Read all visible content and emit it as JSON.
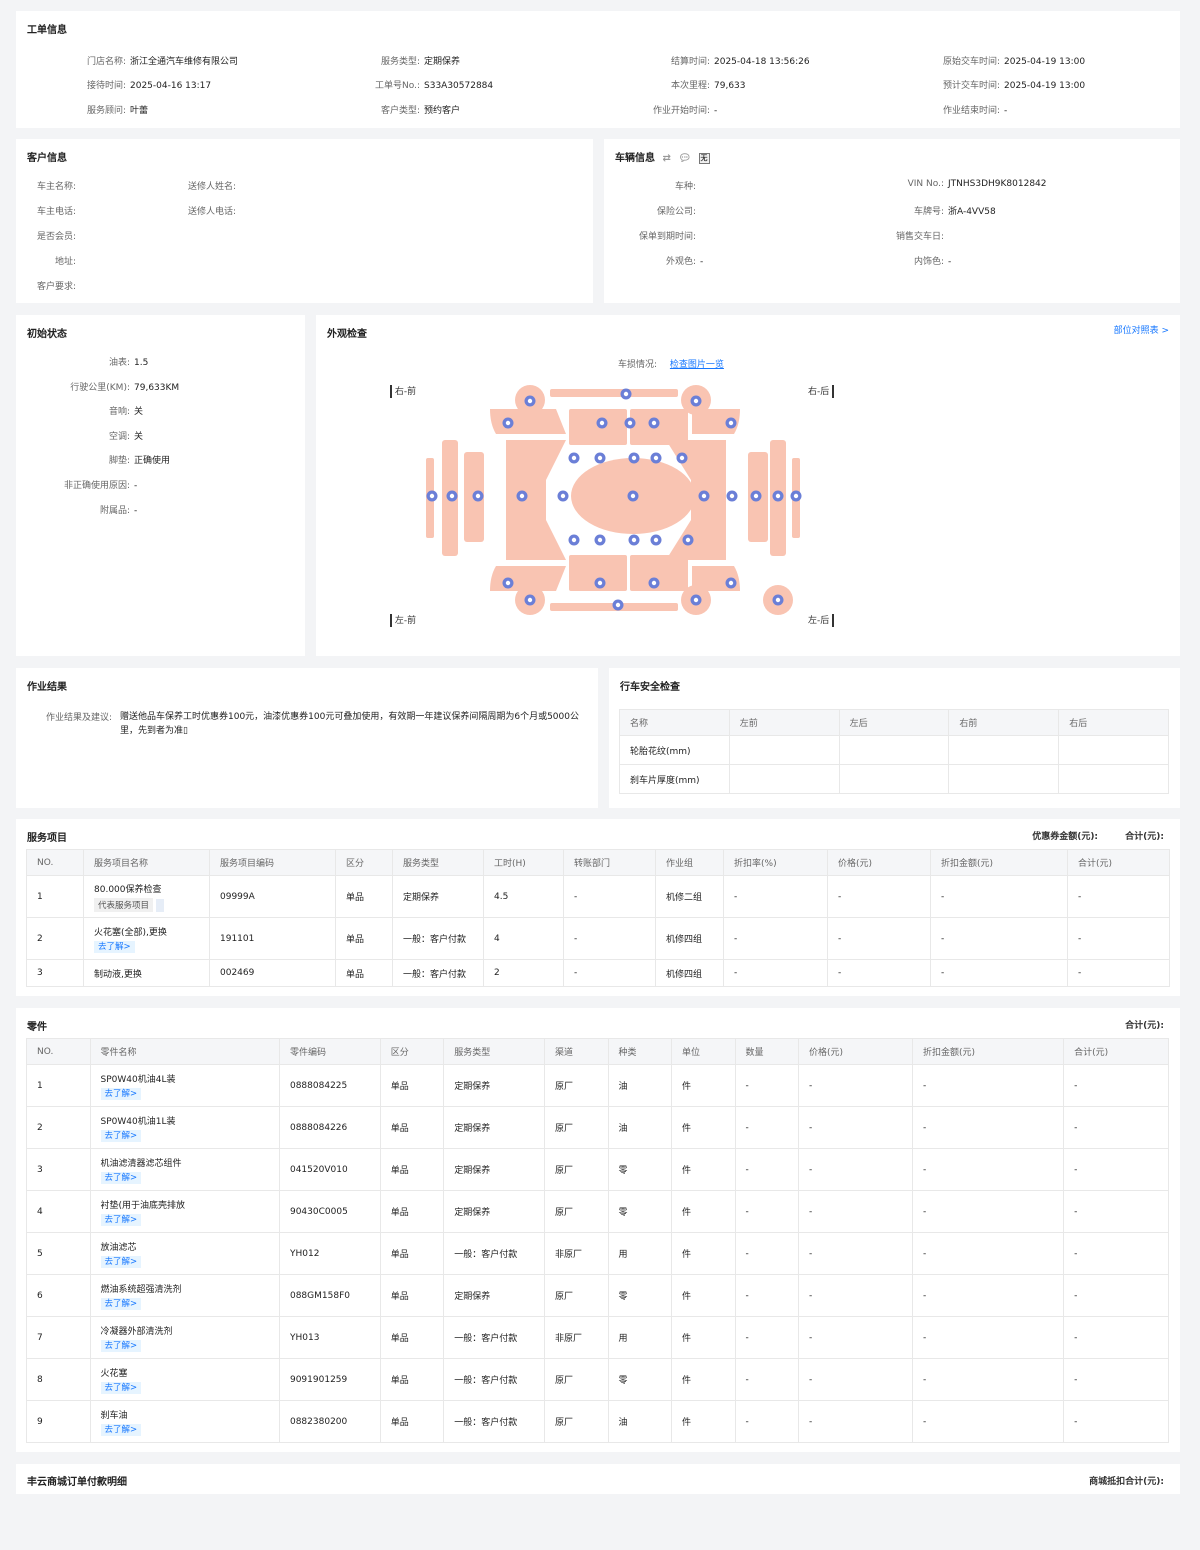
{
  "work_order": {
    "title": "工单信息",
    "fields": [
      {
        "label": "门店名称:",
        "value": "浙江全通汽车维修有限公司"
      },
      {
        "label": "服务类型:",
        "value": "定期保养"
      },
      {
        "label": "结算时间:",
        "value": "2025-04-18 13:56:26"
      },
      {
        "label": "原始交车时间:",
        "value": "2025-04-19 13:00"
      },
      {
        "label": "接待时间:",
        "value": "2025-04-16 13:17"
      },
      {
        "label": "工单号No.:",
        "value": "S33A30572884"
      },
      {
        "label": "本次里程:",
        "value": "79,633"
      },
      {
        "label": "预计交车时间:",
        "value": "2025-04-19 13:00"
      },
      {
        "label": "服务顾问:",
        "value": "叶蕾"
      },
      {
        "label": "客户类型:",
        "value": "预约客户"
      },
      {
        "label": "作业开始时间:",
        "value": "-"
      },
      {
        "label": "作业结束时间:",
        "value": "-"
      }
    ]
  },
  "customer": {
    "title": "客户信息",
    "fields": [
      {
        "label": "车主名称:",
        "value": ""
      },
      {
        "label": "送修人姓名:",
        "value": ""
      },
      {
        "label": "车主电话:",
        "value": ""
      },
      {
        "label": "送修人电话:",
        "value": ""
      },
      {
        "label": "是否会员:",
        "value": ""
      },
      {
        "label": "地址:",
        "value": ""
      },
      {
        "label": "客户要求:",
        "value": ""
      }
    ]
  },
  "vehicle": {
    "title": "车辆信息",
    "icon_badge": "无",
    "fields": [
      {
        "label": "车种:",
        "value": ""
      },
      {
        "label": "VIN No.:",
        "value": "JTNHS3DH9K8012842"
      },
      {
        "label": "保险公司:",
        "value": ""
      },
      {
        "label": "车牌号:",
        "value": "浙A-4VV58"
      },
      {
        "label": "保单到期时间:",
        "value": ""
      },
      {
        "label": "销售交车日:",
        "value": ""
      },
      {
        "label": "外观色:",
        "value": "-"
      },
      {
        "label": "内饰色:",
        "value": "-"
      }
    ]
  },
  "initial_state": {
    "title": "初始状态",
    "fields": [
      {
        "label": "油表:",
        "value": "1.5"
      },
      {
        "label": "行驶公里(KM):",
        "value": "79,633KM"
      },
      {
        "label": "音响:",
        "value": "关"
      },
      {
        "label": "空调:",
        "value": "关"
      },
      {
        "label": "脚垫:",
        "value": "正确使用"
      },
      {
        "label": "非正确使用原因:",
        "value": "-"
      },
      {
        "label": "附属品:",
        "value": "-"
      }
    ]
  },
  "appearance": {
    "title": "外观检查",
    "link_right": "部位对照表 >",
    "damage_label": "车损情况:",
    "damage_link": "检查图片一览",
    "corners": {
      "right_front": "右-前",
      "right_rear": "右-后",
      "left_front": "左-前",
      "left_rear": "左-后"
    }
  },
  "work_result": {
    "title": "作业结果",
    "label": "作业结果及建议:",
    "line1": "赠送他品车保养工时优惠券100元，油漆优惠券100元可叠加使用，有效期一年建议保养间隔周期为6个月或5000公",
    "line2": "里，先到者为准▯"
  },
  "safety": {
    "title": "行车安全检查",
    "headers": [
      "名称",
      "左前",
      "左后",
      "右前",
      "右后"
    ],
    "rows": [
      [
        "轮胎花纹(mm)",
        "",
        "",
        "",
        ""
      ],
      [
        "刹车片厚度(mm)",
        "",
        "",
        "",
        ""
      ]
    ]
  },
  "services": {
    "title": "服务项目",
    "coupon_label": "优惠券金额(元):",
    "total_label": "合计(元):",
    "headers": [
      "NO.",
      "服务项目名称",
      "服务项目编码",
      "区分",
      "服务类型",
      "工时(H)",
      "转账部门",
      "作业组",
      "折扣率(%)",
      "价格(元)",
      "折扣金额(元)",
      "合计(元)"
    ],
    "rows": [
      {
        "no": "1",
        "name": "80.000保养检查",
        "tag": "代表服务项目",
        "code": "09999A",
        "cls": "单品",
        "type": "定期保养",
        "hours": "4.5",
        "dept": "-",
        "group": "机修二组",
        "disc": "-",
        "price": "-",
        "disc_amt": "-",
        "total": "-"
      },
      {
        "no": "2",
        "name": "火花塞(全部),更换",
        "tag": "去了解>",
        "code": "191101",
        "cls": "单品",
        "type": "一般：客户付款",
        "hours": "4",
        "dept": "-",
        "group": "机修四组",
        "disc": "-",
        "price": "-",
        "disc_amt": "-",
        "total": "-"
      },
      {
        "no": "3",
        "name": "制动液,更换",
        "tag": "",
        "code": "002469",
        "cls": "单品",
        "type": "一般：客户付款",
        "hours": "2",
        "dept": "-",
        "group": "机修四组",
        "disc": "-",
        "price": "-",
        "disc_amt": "-",
        "total": "-"
      }
    ]
  },
  "parts": {
    "title": "零件",
    "total_label": "合计(元):",
    "headers": [
      "NO.",
      "零件名称",
      "零件编码",
      "区分",
      "服务类型",
      "渠道",
      "种类",
      "单位",
      "数量",
      "价格(元)",
      "折扣金额(元)",
      "合计(元)"
    ],
    "rows": [
      {
        "no": "1",
        "name": "SP0W40机油4L装",
        "tag": "去了解>",
        "code": "0888084225",
        "cls": "单品",
        "type": "定期保养",
        "channel": "原厂",
        "kind": "油",
        "unit": "件",
        "qty": "-",
        "price": "-",
        "disc_amt": "-",
        "total": "-"
      },
      {
        "no": "2",
        "name": "SP0W40机油1L装",
        "tag": "去了解>",
        "code": "0888084226",
        "cls": "单品",
        "type": "定期保养",
        "channel": "原厂",
        "kind": "油",
        "unit": "件",
        "qty": "-",
        "price": "-",
        "disc_amt": "-",
        "total": "-"
      },
      {
        "no": "3",
        "name": "机油滤清器滤芯组件",
        "tag": "去了解>",
        "code": "041520V010",
        "cls": "单品",
        "type": "定期保养",
        "channel": "原厂",
        "kind": "零",
        "unit": "件",
        "qty": "-",
        "price": "-",
        "disc_amt": "-",
        "total": "-"
      },
      {
        "no": "4",
        "name": "衬垫(用于油底壳排放",
        "tag": "去了解>",
        "code": "90430C0005",
        "cls": "单品",
        "type": "定期保养",
        "channel": "原厂",
        "kind": "零",
        "unit": "件",
        "qty": "-",
        "price": "-",
        "disc_amt": "-",
        "total": "-"
      },
      {
        "no": "5",
        "name": "放油滤芯",
        "tag": "去了解>",
        "code": "YH012",
        "cls": "单品",
        "type": "一般：客户付款",
        "channel": "非原厂",
        "kind": "用",
        "unit": "件",
        "qty": "-",
        "price": "-",
        "disc_amt": "-",
        "total": "-"
      },
      {
        "no": "6",
        "name": "燃油系统超强清洗剂",
        "tag": "去了解>",
        "code": "088GM158F0",
        "cls": "单品",
        "type": "定期保养",
        "channel": "原厂",
        "kind": "零",
        "unit": "件",
        "qty": "-",
        "price": "-",
        "disc_amt": "-",
        "total": "-"
      },
      {
        "no": "7",
        "name": "冷凝器外部清洗剂",
        "tag": "去了解>",
        "code": "YH013",
        "cls": "单品",
        "type": "一般：客户付款",
        "channel": "非原厂",
        "kind": "用",
        "unit": "件",
        "qty": "-",
        "price": "-",
        "disc_amt": "-",
        "total": "-"
      },
      {
        "no": "8",
        "name": "火花塞",
        "tag": "去了解>",
        "code": "9091901259",
        "cls": "单品",
        "type": "一般：客户付款",
        "channel": "原厂",
        "kind": "零",
        "unit": "件",
        "qty": "-",
        "price": "-",
        "disc_amt": "-",
        "total": "-"
      },
      {
        "no": "9",
        "name": "刹车油",
        "tag": "去了解>",
        "code": "0882380200",
        "cls": "单品",
        "type": "一般：客户付款",
        "channel": "原厂",
        "kind": "油",
        "unit": "件",
        "qty": "-",
        "price": "-",
        "disc_amt": "-",
        "total": "-"
      }
    ]
  },
  "mall": {
    "title": "丰云商城订单付款明细",
    "total_label": "商城抵扣合计(元):"
  }
}
